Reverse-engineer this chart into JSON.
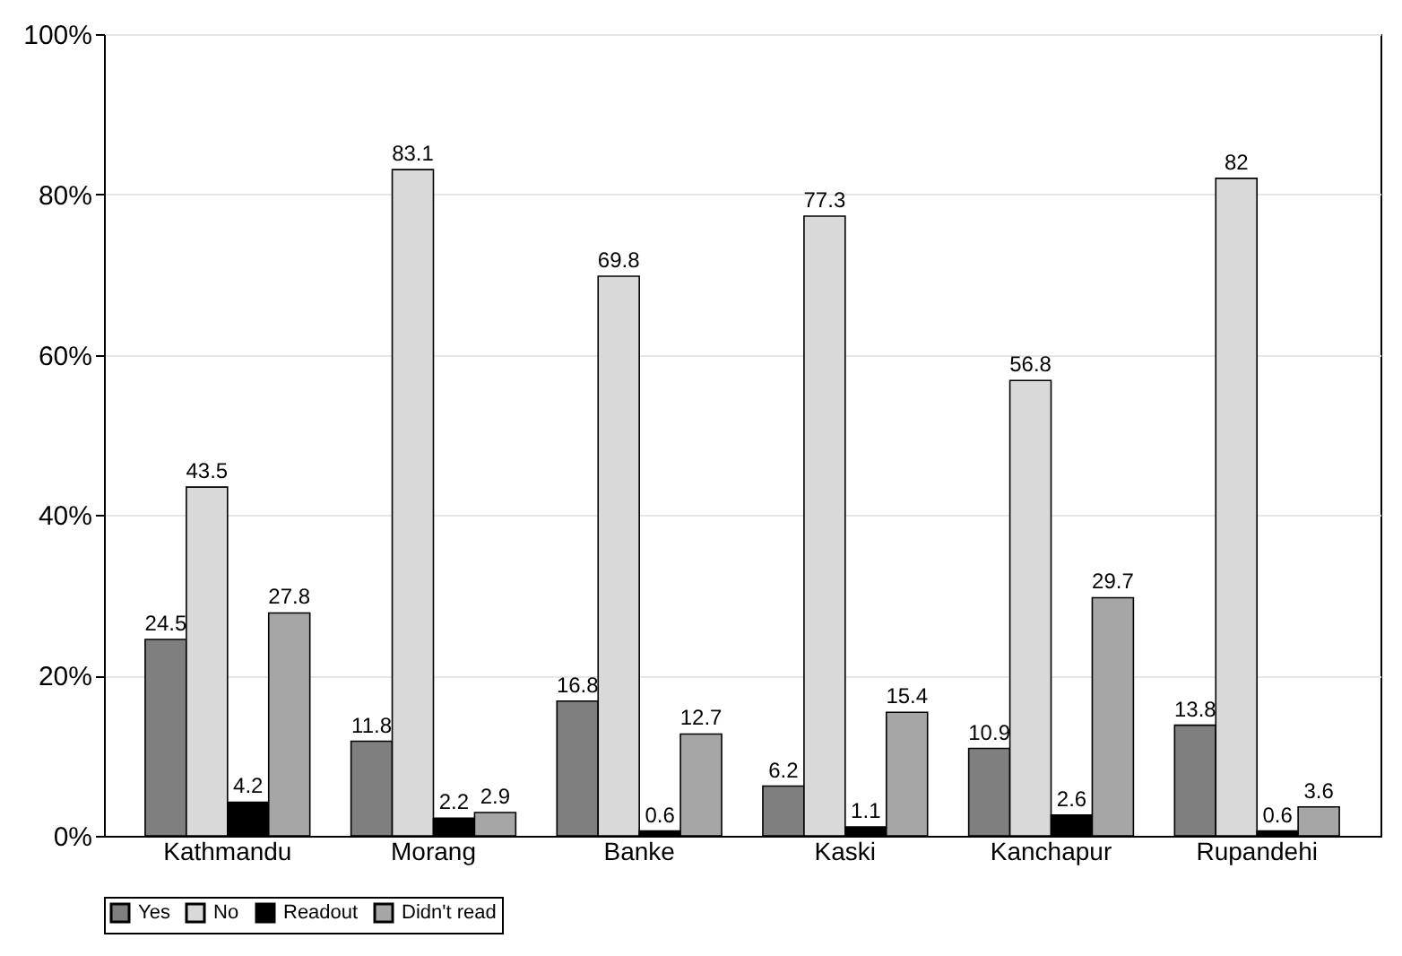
{
  "chart_data": {
    "type": "bar",
    "categories": [
      "Kathmandu",
      "Morang",
      "Banke",
      "Kaski",
      "Kanchapur",
      "Rupandehi"
    ],
    "series": [
      {
        "name": "Yes",
        "color": "#7f7f7f",
        "values": [
          24.5,
          11.8,
          16.8,
          6.2,
          10.9,
          13.8
        ]
      },
      {
        "name": "No",
        "color": "#d9d9d9",
        "values": [
          43.5,
          83.1,
          69.8,
          77.3,
          56.8,
          82
        ]
      },
      {
        "name": "Readout",
        "color": "#000000",
        "values": [
          4.2,
          2.2,
          0.6,
          1.1,
          2.6,
          0.6
        ]
      },
      {
        "name": "Didn't read",
        "color": "#a6a6a6",
        "values": [
          27.8,
          2.9,
          12.7,
          15.4,
          29.7,
          3.6
        ]
      }
    ],
    "ylim": [
      0,
      100
    ],
    "yticks": [
      {
        "value": 0,
        "label": "0%"
      },
      {
        "value": 20,
        "label": "20%"
      },
      {
        "value": 40,
        "label": "40%"
      },
      {
        "value": 60,
        "label": "60%"
      },
      {
        "value": 80,
        "label": "80%"
      },
      {
        "value": 100,
        "label": "100%"
      }
    ],
    "grid": "y",
    "legend": "bottom",
    "data_labels": true
  }
}
